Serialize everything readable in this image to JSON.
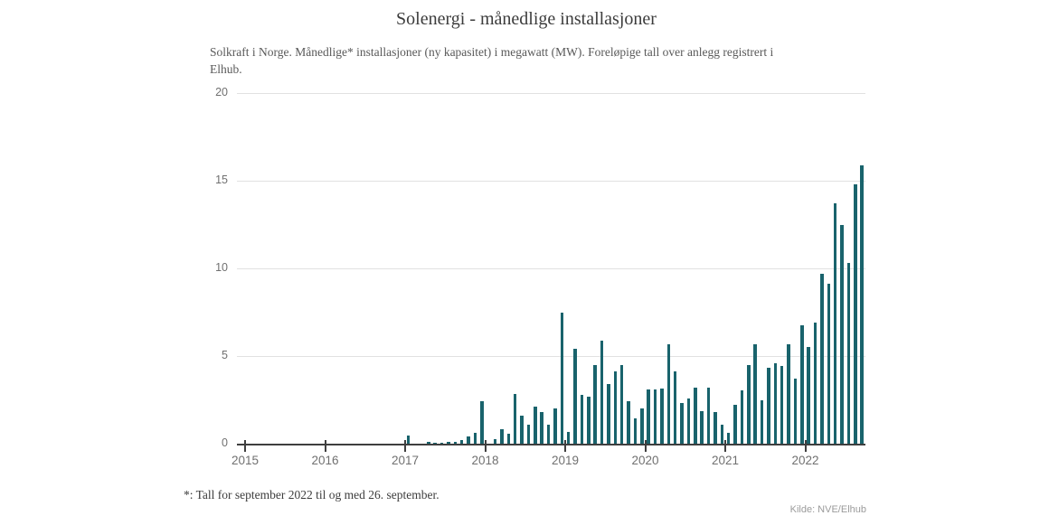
{
  "header": {
    "title": "Solenergi - månedlige installasjoner",
    "subtitle": "Solkraft i Norge. Månedlige* installasjoner (ny kapasitet) i megawatt (MW). Foreløpige tall over anlegg registrert i Elhub."
  },
  "footer": {
    "footnote": "*: Tall for september 2022 til og med 26. september.",
    "source": "Kilde: NVE/Elhub"
  },
  "colors": {
    "bar": "#19636c",
    "axis": "#3f3f3f",
    "grid": "#e1e1e1",
    "tick_label": "#707070"
  },
  "chart_data": {
    "type": "bar",
    "title": "Solenergi - månedlige installasjoner",
    "unit": "MW",
    "ylabel": "",
    "xlabel": "",
    "ylim": [
      0,
      20
    ],
    "yticks": [
      0,
      5,
      10,
      15,
      20
    ],
    "xticks": [
      "2015",
      "2016",
      "2017",
      "2018",
      "2019",
      "2020",
      "2021",
      "2022"
    ],
    "grid": "horizontal",
    "legend": "none",
    "start_month": "2015-01",
    "end_month": "2022-09",
    "values_by_year": {
      "2015": [
        0,
        0,
        0,
        0,
        0,
        0,
        0,
        0,
        0,
        0,
        0,
        0
      ],
      "2016": [
        0,
        0,
        0,
        0,
        0,
        0,
        0,
        0,
        0,
        0,
        0,
        0
      ],
      "2017": [
        0.45,
        0,
        0,
        0.1,
        0.05,
        0.05,
        0.1,
        0.1,
        0.2,
        0.4,
        0.6,
        2.4
      ],
      "2018": [
        0,
        0.25,
        0.85,
        0.55,
        2.85,
        1.6,
        1.1,
        2.1,
        1.8,
        1.1,
        2.0,
        7.5
      ],
      "2019": [
        0.65,
        5.4,
        2.8,
        2.7,
        4.5,
        5.9,
        3.4,
        4.1,
        4.5,
        2.4,
        1.45,
        2.0
      ],
      "2020": [
        3.1,
        3.1,
        3.15,
        5.65,
        4.1,
        2.3,
        2.6,
        3.2,
        1.85,
        3.2,
        1.8,
        1.1
      ],
      "2021": [
        0.6,
        2.2,
        3.05,
        4.5,
        5.65,
        2.5,
        4.35,
        4.6,
        4.45,
        5.65,
        3.7,
        6.75
      ],
      "2022": [
        5.5,
        6.9,
        9.7,
        9.1,
        13.7,
        12.5,
        10.3,
        14.8,
        15.9
      ]
    }
  }
}
